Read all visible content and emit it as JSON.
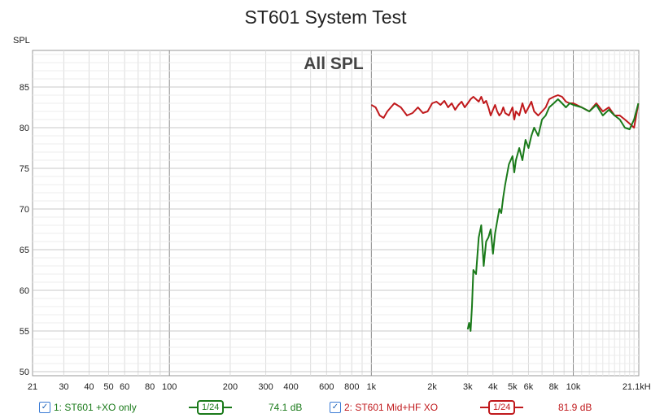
{
  "window": {
    "title": "ST601 System Test"
  },
  "chart_data": {
    "type": "line",
    "title": "ST601 System Test",
    "annotation": "All SPL",
    "ylabel": "SPL",
    "xlabel": "",
    "x_scale": "log",
    "xlim": [
      21,
      21100
    ],
    "ylim": [
      49.5,
      89.5
    ],
    "x_ticks": [
      21,
      30,
      40,
      50,
      60,
      80,
      100,
      200,
      300,
      400,
      600,
      800,
      1000,
      2000,
      3000,
      4000,
      5000,
      6000,
      8000,
      10000,
      21100
    ],
    "x_tick_labels": [
      "21",
      "30",
      "40",
      "50",
      "60",
      "80",
      "100",
      "200",
      "300",
      "400",
      "600",
      "800",
      "1k",
      "2k",
      "3k",
      "4k",
      "5k",
      "6k",
      "8k",
      "10k",
      "21.1kHz"
    ],
    "y_ticks": [
      50,
      55,
      60,
      65,
      70,
      75,
      80,
      85
    ],
    "y_tick_labels": [
      "50",
      "55",
      "60",
      "65",
      "70",
      "75",
      "80",
      "85"
    ],
    "grid": true,
    "series": [
      {
        "name": "ST601 +XO only",
        "color": "#1a7a1a",
        "x": [
          3000,
          3050,
          3100,
          3150,
          3200,
          3300,
          3400,
          3500,
          3600,
          3700,
          3800,
          3900,
          4000,
          4100,
          4200,
          4300,
          4400,
          4500,
          4600,
          4800,
          5000,
          5100,
          5200,
          5400,
          5600,
          5800,
          6000,
          6200,
          6400,
          6700,
          7000,
          7300,
          7600,
          8000,
          8400,
          8800,
          9200,
          9600,
          10000,
          11000,
          12000,
          13000,
          14000,
          15000,
          16000,
          17000,
          18000,
          19000,
          20000,
          21000
        ],
        "y": [
          55.2,
          56.0,
          55.0,
          58.0,
          62.5,
          62.0,
          66.5,
          68.0,
          63.0,
          66.0,
          66.5,
          67.5,
          64.5,
          67.0,
          68.5,
          70.0,
          69.5,
          71.5,
          73.0,
          75.5,
          76.5,
          74.5,
          76.0,
          77.5,
          76.0,
          78.5,
          77.5,
          79.0,
          80.0,
          79.0,
          81.0,
          81.5,
          82.5,
          83.0,
          83.5,
          83.0,
          82.5,
          83.0,
          82.8,
          82.5,
          82.0,
          82.8,
          81.5,
          82.2,
          81.5,
          81.0,
          80.0,
          79.8,
          81.0,
          83.0
        ]
      },
      {
        "name": "ST601 Mid+HF XO",
        "color": "#c0191c",
        "x": [
          1000,
          1050,
          1100,
          1150,
          1200,
          1300,
          1400,
          1500,
          1600,
          1700,
          1800,
          1900,
          2000,
          2100,
          2200,
          2300,
          2400,
          2500,
          2600,
          2700,
          2800,
          2900,
          3000,
          3100,
          3200,
          3300,
          3400,
          3500,
          3600,
          3700,
          3800,
          3900,
          4000,
          4100,
          4200,
          4300,
          4400,
          4500,
          4600,
          4800,
          5000,
          5100,
          5200,
          5400,
          5600,
          5800,
          6000,
          6200,
          6400,
          6700,
          7000,
          7300,
          7600,
          8000,
          8400,
          8800,
          9200,
          9600,
          10000,
          11000,
          12000,
          13000,
          14000,
          15000,
          16000,
          17000,
          18000,
          19000,
          20000,
          21000
        ],
        "y": [
          82.8,
          82.5,
          81.5,
          81.2,
          82.0,
          83.0,
          82.5,
          81.5,
          81.8,
          82.5,
          81.8,
          82.0,
          83.0,
          83.2,
          82.8,
          83.3,
          82.5,
          83.0,
          82.2,
          82.8,
          83.2,
          82.5,
          83.0,
          83.5,
          83.8,
          83.5,
          83.2,
          83.8,
          83.0,
          83.3,
          82.5,
          81.5,
          82.2,
          82.8,
          82.0,
          81.5,
          81.8,
          82.5,
          81.8,
          81.5,
          82.5,
          81.0,
          82.0,
          81.5,
          83.0,
          81.8,
          82.5,
          83.2,
          82.0,
          81.5,
          82.0,
          82.5,
          83.5,
          83.8,
          84.0,
          83.8,
          83.2,
          83.0,
          83.0,
          82.5,
          82.0,
          83.0,
          82.0,
          82.5,
          81.5,
          81.5,
          81.0,
          80.5,
          80.0,
          83.0
        ]
      }
    ]
  },
  "legend": [
    {
      "label": "1: ST601 +XO only",
      "smoothing": "1/24",
      "value": "74.1 dB",
      "color": "#1a7a1a",
      "checked": true
    },
    {
      "label": "2: ST601 Mid+HF XO",
      "smoothing": "1/24",
      "value": "81.9 dB",
      "color": "#c0191c",
      "checked": true
    }
  ]
}
